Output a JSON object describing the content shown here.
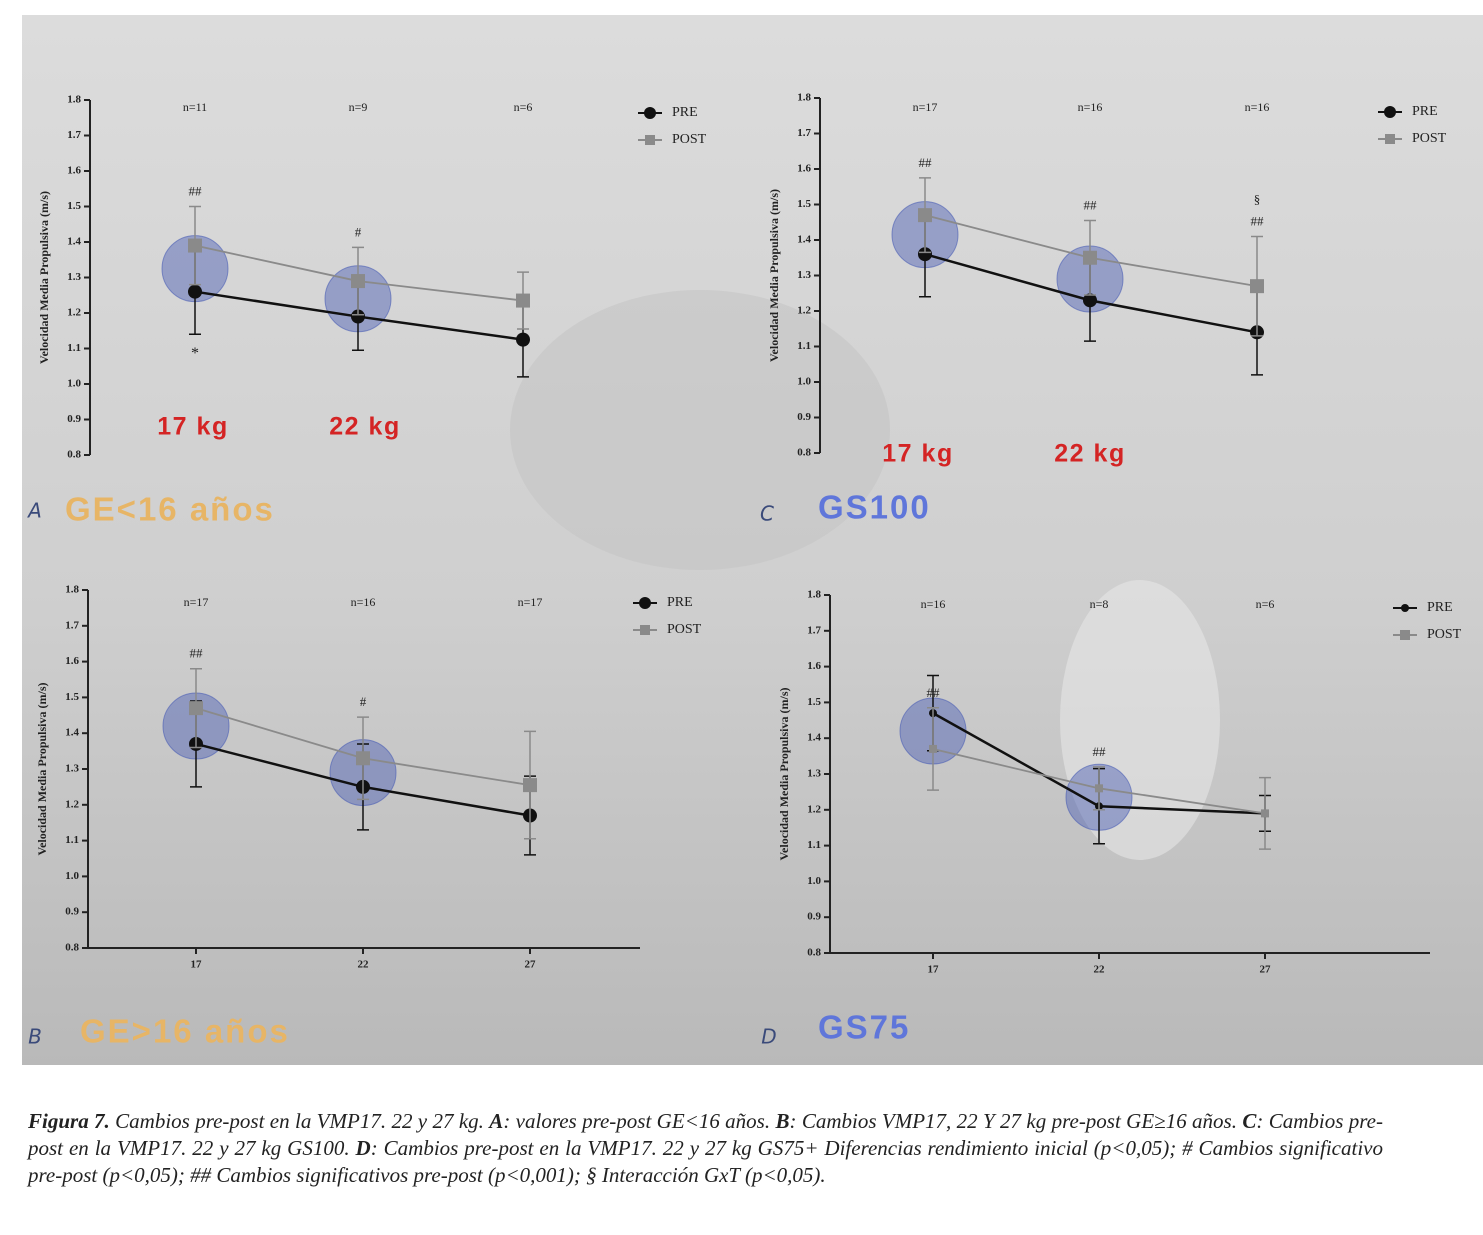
{
  "chart_data": [
    {
      "type": "line",
      "panel": "A",
      "group_label": "GE<16 años",
      "ylabel": "Velocidad Media Propulsiva (m/s)",
      "categories": [
        null,
        null,
        null
      ],
      "n_labels": [
        "n=11",
        "n=9",
        "n=6"
      ],
      "load_labels": [
        "17 kg",
        "22 kg"
      ],
      "marks_above": [
        [
          "##"
        ],
        [
          "#"
        ],
        []
      ],
      "marks_below": [
        [
          "*"
        ],
        [],
        []
      ],
      "x_axis_line": false,
      "ylim": [
        0.8,
        1.8
      ],
      "yticks": [
        0.8,
        0.9,
        {
          "value": 1,
          "label": "1.0"
        },
        1.1,
        1.2,
        1.3,
        1.4,
        1.5,
        1.6,
        1.7,
        1.8
      ],
      "series": [
        {
          "name": "PRE",
          "color": "#111111",
          "marker": "circle",
          "values": [
            1.26,
            1.19,
            1.125
          ],
          "errors": [
            0.12,
            0.095,
            0.105
          ]
        },
        {
          "name": "POST",
          "color": "#8a8a8a",
          "marker": "square",
          "values": [
            1.39,
            1.29,
            1.235
          ],
          "errors": [
            0.11,
            0.095,
            0.08
          ]
        }
      ]
    },
    {
      "type": "line",
      "panel": "B",
      "group_label": "GE>16 años",
      "ylabel": "Velocidad Media Propulsiva (m/s)",
      "categories": [
        "17",
        "22",
        "27"
      ],
      "n_labels": [
        "n=17",
        "n=16",
        "n=17"
      ],
      "load_labels": [],
      "marks_above": [
        [
          "##"
        ],
        [
          "#"
        ],
        []
      ],
      "marks_below": [
        [],
        [],
        []
      ],
      "x_axis_line": true,
      "ylim": [
        0.8,
        1.8
      ],
      "yticks": [
        0.8,
        0.9,
        {
          "value": 1,
          "label": "1.0"
        },
        1.1,
        1.2,
        1.3,
        1.4,
        1.5,
        1.6,
        1.7,
        1.8
      ],
      "series": [
        {
          "name": "PRE",
          "color": "#111111",
          "marker": "circle",
          "values": [
            1.37,
            1.25,
            1.17
          ],
          "errors": [
            0.12,
            0.12,
            0.11
          ]
        },
        {
          "name": "POST",
          "color": "#8a8a8a",
          "marker": "square",
          "values": [
            1.47,
            1.33,
            1.255
          ],
          "errors": [
            0.11,
            0.115,
            0.15
          ]
        }
      ]
    },
    {
      "type": "line",
      "panel": "C",
      "group_label": "GS100",
      "ylabel": "Velocidad Media Propulsiva (m/s)",
      "categories": [
        null,
        null,
        null
      ],
      "n_labels": [
        "n=17",
        "n=16",
        "n=16"
      ],
      "load_labels": [
        "17 kg",
        "22 kg"
      ],
      "marks_above": [
        [
          "##"
        ],
        [
          "##"
        ],
        [
          "§",
          "##"
        ]
      ],
      "marks_below": [
        [],
        [],
        []
      ],
      "x_axis_line": false,
      "ylim": [
        0.8,
        1.8
      ],
      "yticks": [
        0.8,
        0.9,
        {
          "value": 1,
          "label": "1.0"
        },
        1.1,
        1.2,
        1.3,
        1.4,
        1.5,
        1.6,
        1.7,
        1.8
      ],
      "series": [
        {
          "name": "PRE",
          "color": "#111111",
          "marker": "circle",
          "values": [
            1.36,
            1.23,
            1.14
          ],
          "errors": [
            0.12,
            0.115,
            0.12
          ]
        },
        {
          "name": "POST",
          "color": "#8a8a8a",
          "marker": "square",
          "values": [
            1.47,
            1.35,
            1.27
          ],
          "errors": [
            0.105,
            0.105,
            0.14
          ]
        }
      ]
    },
    {
      "type": "line",
      "panel": "D",
      "group_label": "GS75",
      "ylabel": "Velocidad Media Propulsiva (m/s)",
      "categories": [
        "17",
        "22",
        "27"
      ],
      "n_labels": [
        "n=16",
        "n=8",
        "n=6"
      ],
      "load_labels": [],
      "marks_above": [
        [
          "##"
        ],
        [
          "##"
        ],
        []
      ],
      "marks_below": [
        [],
        [],
        []
      ],
      "x_axis_line": true,
      "ylim": [
        0.8,
        1.8
      ],
      "yticks": [
        0.8,
        0.9,
        {
          "value": 1,
          "label": "1.0"
        },
        1.1,
        1.2,
        1.3,
        1.4,
        1.5,
        1.6,
        1.7,
        1.8
      ],
      "series": [
        {
          "name": "PRE",
          "color": "#111111",
          "marker": "circle",
          "values": [
            1.47,
            1.21,
            1.19
          ],
          "errors": [
            0.105,
            0.105,
            0.05
          ]
        },
        {
          "name": "POST",
          "color": "#8a8a8a",
          "marker": "square",
          "values": [
            1.37,
            1.26,
            1.19
          ],
          "errors": [
            0.115,
            0.06,
            0.1
          ]
        }
      ]
    }
  ],
  "caption": [
    {
      "text": "Figura 7.",
      "bold": true
    },
    {
      "text": " Cambios pre-post en la VMP17. 22 y 27 kg. "
    },
    {
      "text": "A",
      "bold": true
    },
    {
      "text": ": valores pre-post GE<16 años. "
    },
    {
      "text": "B",
      "bold": true
    },
    {
      "text": ": Cambios VMP17, 22 Y 27 kg pre-post GE≥16 años. "
    },
    {
      "text": "C",
      "bold": true
    },
    {
      "text": ": Cambios pre-post en la VMP17. 22 y 27 kg GS100. "
    },
    {
      "text": "D",
      "bold": true
    },
    {
      "text": ": Cambios pre-post en la VMP17. 22 y 27 kg GS75+ Diferencias rendimiento inicial (p<0,05); # Cambios significativo pre-post (p<0,05); ## Cambios significativos pre-post (p<0,001); § Interacción GxT (p<0,05)."
    }
  ]
}
